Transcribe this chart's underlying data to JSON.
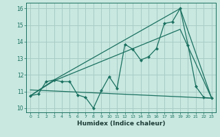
{
  "title": "",
  "xlabel": "Humidex (Indice chaleur)",
  "bg_color": "#c8e8e0",
  "line_color": "#1a7060",
  "grid_color": "#a8ccc4",
  "xlim": [
    -0.5,
    23.5
  ],
  "ylim": [
    9.75,
    16.35
  ],
  "xticks": [
    0,
    1,
    2,
    3,
    4,
    5,
    6,
    7,
    8,
    9,
    10,
    11,
    12,
    13,
    14,
    15,
    16,
    17,
    18,
    19,
    20,
    21,
    22,
    23
  ],
  "yticks": [
    10,
    11,
    12,
    13,
    14,
    15,
    16
  ],
  "line1_x": [
    0,
    1,
    2,
    3,
    4,
    5,
    6,
    7,
    8,
    9,
    10,
    11,
    12,
    13,
    14,
    15,
    16,
    17,
    18,
    19,
    20,
    21,
    22,
    23
  ],
  "line1_y": [
    10.75,
    10.85,
    11.6,
    11.7,
    11.6,
    11.6,
    10.8,
    10.65,
    10.0,
    11.05,
    11.9,
    11.2,
    13.85,
    13.55,
    12.9,
    13.1,
    13.6,
    15.1,
    15.2,
    16.0,
    13.8,
    11.3,
    10.65,
    10.6
  ],
  "line2_x": [
    0,
    3,
    19,
    23
  ],
  "line2_y": [
    10.75,
    11.7,
    16.0,
    10.6
  ],
  "line3_x": [
    0,
    3,
    19,
    23
  ],
  "line3_y": [
    10.75,
    11.65,
    14.75,
    10.6
  ],
  "line4_x": [
    0,
    23
  ],
  "line4_y": [
    11.1,
    10.6
  ]
}
